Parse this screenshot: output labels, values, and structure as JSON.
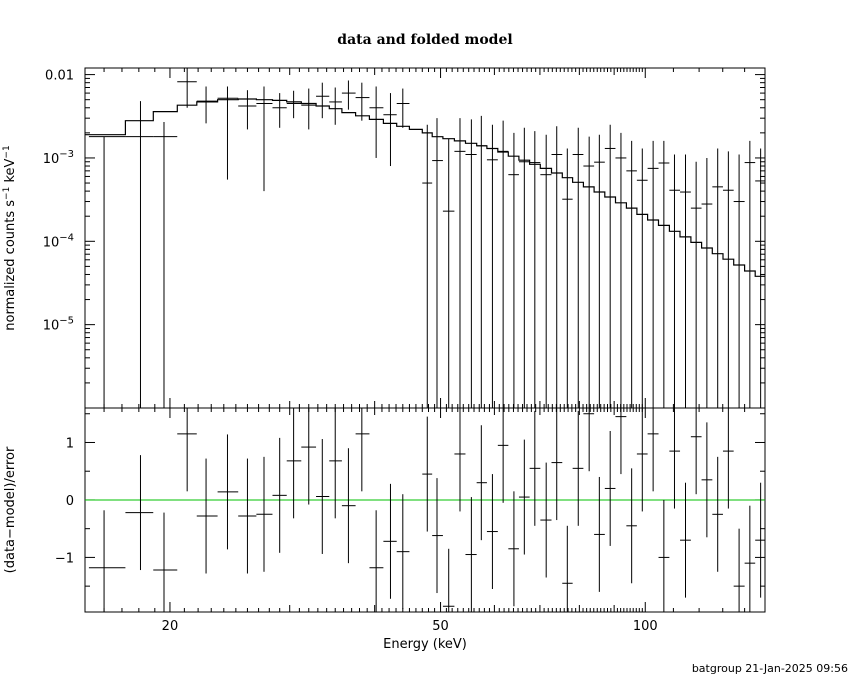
{
  "chart_data": [
    {
      "type": "scatter",
      "panel": "top",
      "title": "data and folded model",
      "ylabel": "normalized counts s",
      "ylabel_sup1": "−1",
      "ylabel_unit": " keV",
      "ylabel_sup2": "−1",
      "xlim": [
        15,
        150
      ],
      "ylim": [
        1e-06,
        0.012
      ],
      "xscale": "log",
      "yscale": "log",
      "ytick_labels": [
        {
          "value": 0.01,
          "base": "0.01",
          "exp": ""
        },
        {
          "value": 0.001,
          "base": "10",
          "exp": "−3"
        },
        {
          "value": 0.0001,
          "base": "10",
          "exp": "−4"
        },
        {
          "value": 1e-05,
          "base": "10",
          "exp": "−5"
        }
      ],
      "series": [
        {
          "kind": "data",
          "x": [
            16.0,
            18.1,
            19.6,
            21.2,
            22.6,
            24.3,
            26.0,
            27.5,
            29.0,
            30.4,
            32.0,
            33.5,
            35.0,
            36.6,
            38.3,
            40.2,
            42.2,
            44.0,
            47.8,
            49.4,
            51.4,
            53.4,
            55.5,
            57.4,
            59.6,
            61.8,
            64.1,
            66.4,
            68.8,
            71.5,
            74.1,
            76.8,
            79.7,
            82.7,
            85.6,
            88.8,
            92.1,
            95.5,
            99.0,
            102.7,
            106.5,
            110.4,
            114.6,
            118.8,
            123.2,
            127.8,
            132.5,
            137.4,
            142.5,
            147.8
          ],
          "y": [
            0.0018,
            0.0018,
            0.0018,
            0.0082,
            0.0048,
            0.0052,
            0.0042,
            0.0045,
            0.004,
            0.0045,
            0.0043,
            0.0055,
            0.0047,
            0.006,
            0.0053,
            0.004,
            0.0033,
            0.0045,
            0.0005,
            0.00093,
            0.00023,
            0.0012,
            0.0011,
            0.0014,
            0.00095,
            0.0012,
            0.00063,
            0.0009,
            0.00088,
            0.00063,
            0.0011,
            0.00032,
            0.0011,
            0.0008,
            0.00089,
            0.0013,
            0.001,
            0.0007,
            0.00054,
            0.00075,
            0.00087,
            0.00041,
            0.00039,
            0.00025,
            0.00028,
            0.00045,
            0.00041,
            0.0003,
            0.00088,
            0.00053
          ],
          "xlo": [
            15.2,
            17.2,
            18.9,
            20.5,
            21.9,
            23.5,
            25.2,
            26.8,
            28.3,
            29.7,
            31.2,
            32.8,
            34.3,
            35.8,
            37.5,
            39.3,
            41.2,
            43.1,
            47.0,
            48.6,
            50.4,
            52.4,
            54.4,
            56.5,
            58.5,
            60.7,
            62.9,
            65.2,
            67.6,
            70.1,
            72.8,
            75.5,
            78.2,
            81.1,
            84.1,
            87.2,
            90.4,
            93.8,
            97.2,
            100.8,
            104.6,
            108.5,
            112.5,
            116.7,
            121.0,
            125.5,
            130.1,
            134.9,
            140.0,
            145.1
          ],
          "xhi": [
            17.2,
            18.9,
            20.5,
            21.9,
            23.5,
            25.2,
            26.8,
            28.3,
            29.7,
            31.2,
            32.8,
            34.3,
            35.8,
            37.5,
            39.3,
            41.2,
            43.1,
            45.0,
            48.6,
            50.4,
            52.4,
            54.4,
            56.5,
            58.5,
            60.7,
            62.9,
            65.2,
            67.6,
            70.1,
            72.8,
            75.5,
            78.2,
            81.1,
            84.1,
            87.2,
            90.4,
            93.8,
            97.2,
            100.8,
            104.6,
            108.5,
            112.5,
            116.7,
            121.0,
            125.5,
            130.1,
            134.9,
            140.0,
            145.1,
            150.0
          ],
          "ylo": [
            1e-06,
            1e-06,
            1e-06,
            0.004,
            0.0026,
            0.00055,
            0.0022,
            0.0004,
            0.0023,
            0.003,
            0.0022,
            0.003,
            0.0025,
            0.0038,
            0.0028,
            0.001,
            0.0008,
            0.0023,
            1e-06,
            1e-06,
            1e-06,
            1e-06,
            1e-06,
            1e-06,
            1e-06,
            1e-06,
            1e-06,
            1e-06,
            1e-06,
            1e-06,
            1e-06,
            1e-06,
            1e-06,
            1e-06,
            1e-06,
            1e-06,
            1e-06,
            1e-06,
            1e-06,
            1e-06,
            1e-06,
            1e-06,
            1e-06,
            1e-06,
            1e-06,
            1e-06,
            1e-06,
            1e-06,
            1e-06,
            1e-06
          ],
          "yhi": [
            0.0018,
            0.0048,
            0.0027,
            0.012,
            0.0072,
            0.0072,
            0.0065,
            0.0072,
            0.006,
            0.0064,
            0.0068,
            0.008,
            0.007,
            0.0085,
            0.008,
            0.0072,
            0.006,
            0.0068,
            0.0025,
            0.003,
            0.0017,
            0.003,
            0.0029,
            0.0032,
            0.0025,
            0.0028,
            0.002,
            0.0023,
            0.0021,
            0.0019,
            0.0024,
            0.0013,
            0.0023,
            0.0018,
            0.0019,
            0.0025,
            0.002,
            0.0016,
            0.0013,
            0.0016,
            0.0016,
            0.0011,
            0.0011,
            0.0009,
            0.001,
            0.0013,
            0.0012,
            0.0011,
            0.0016,
            0.0013
          ]
        },
        {
          "kind": "model",
          "edges": [
            15.2,
            17.2,
            18.9,
            20.5,
            21.9,
            23.5,
            25.2,
            26.8,
            28.3,
            29.7,
            31.2,
            32.8,
            34.3,
            35.8,
            37.5,
            39.3,
            41.2,
            43.1,
            45.0,
            47.0,
            48.6,
            50.4,
            52.4,
            54.4,
            56.5,
            58.5,
            60.7,
            62.9,
            65.2,
            67.6,
            70.1,
            72.8,
            75.5,
            78.2,
            81.1,
            84.1,
            87.2,
            90.4,
            93.8,
            97.2,
            100.8,
            104.6,
            108.5,
            112.5,
            116.7,
            121.0,
            125.5,
            130.1,
            134.9,
            140.0,
            145.1,
            150.0
          ],
          "values": [
            0.0019,
            0.0028,
            0.0036,
            0.0043,
            0.0047,
            0.005,
            0.0051,
            0.005,
            0.0049,
            0.0047,
            0.0045,
            0.0042,
            0.0039,
            0.0035,
            0.0032,
            0.0029,
            0.0026,
            0.0024,
            0.0022,
            0.002,
            0.0018,
            0.0017,
            0.0016,
            0.0015,
            0.0014,
            0.0013,
            0.00118,
            0.00105,
            0.00094,
            0.00084,
            0.00075,
            0.00066,
            0.00058,
            0.00051,
            0.00045,
            0.00039,
            0.00034,
            0.00029,
            0.00025,
            0.00021,
            0.00018,
            0.000155,
            0.000132,
            0.000113,
            9.7e-05,
            8.3e-05,
            7.1e-05,
            6.1e-05,
            5.2e-05,
            4.4e-05,
            3.8e-05
          ]
        }
      ]
    },
    {
      "type": "scatter",
      "panel": "bottom",
      "xlabel": "Energy (keV)",
      "ylabel": "(data−model)/error",
      "xlim": [
        15,
        150
      ],
      "ylim": [
        -1.95,
        1.6
      ],
      "xscale": "log",
      "xtick_labels": [
        {
          "value": 20,
          "label": "20"
        },
        {
          "value": 50,
          "label": "50"
        },
        {
          "value": 100,
          "label": "100"
        }
      ],
      "ytick_labels": [
        {
          "value": 1,
          "label": "1"
        },
        {
          "value": 0,
          "label": "0"
        },
        {
          "value": -1,
          "label": "−1"
        }
      ],
      "reference_line": {
        "y": 0,
        "color": "#00c000"
      },
      "series": [
        {
          "kind": "residual",
          "x": [
            16.0,
            18.1,
            19.6,
            21.2,
            22.6,
            24.3,
            26.0,
            27.5,
            29.0,
            30.4,
            32.0,
            33.5,
            35.0,
            36.6,
            38.3,
            40.2,
            42.2,
            44.0,
            47.8,
            49.4,
            51.4,
            53.4,
            55.5,
            57.4,
            59.6,
            61.8,
            64.1,
            66.4,
            68.8,
            71.5,
            74.1,
            76.8,
            79.7,
            82.7,
            85.6,
            88.8,
            92.1,
            95.5,
            99.0,
            102.7,
            106.5,
            110.4,
            114.6,
            118.8,
            123.2,
            127.8,
            132.5,
            137.4,
            142.5,
            147.8
          ],
          "y": [
            -1.18,
            -0.22,
            -1.22,
            1.15,
            -0.28,
            0.14,
            -0.28,
            -0.25,
            0.08,
            0.68,
            0.92,
            0.06,
            0.68,
            -0.1,
            1.15,
            -1.18,
            -0.72,
            -0.9,
            0.45,
            -0.62,
            -1.85,
            0.8,
            -0.95,
            0.3,
            -0.55,
            0.95,
            -0.85,
            0.05,
            0.55,
            -0.35,
            0.65,
            -1.45,
            0.55,
            1.5,
            -0.6,
            0.2,
            1.45,
            -0.45,
            0.8,
            1.15,
            -1.0,
            0.85,
            -0.7,
            1.1,
            0.35,
            -0.25,
            0.85,
            -1.5,
            -1.1,
            -0.7
          ],
          "xlo": [
            15.2,
            17.2,
            18.9,
            20.5,
            21.9,
            23.5,
            25.2,
            26.8,
            28.3,
            29.7,
            31.2,
            32.8,
            34.3,
            35.8,
            37.5,
            39.3,
            41.2,
            43.1,
            47.0,
            48.6,
            50.4,
            52.4,
            54.4,
            56.5,
            58.5,
            60.7,
            62.9,
            65.2,
            67.6,
            70.1,
            72.8,
            75.5,
            78.2,
            81.1,
            84.1,
            87.2,
            90.4,
            93.8,
            97.2,
            100.8,
            104.6,
            108.5,
            112.5,
            116.7,
            121.0,
            125.5,
            130.1,
            134.9,
            140.0,
            145.1
          ],
          "xhi": [
            17.2,
            18.9,
            20.5,
            21.9,
            23.5,
            25.2,
            26.8,
            28.3,
            29.7,
            31.2,
            32.8,
            34.3,
            35.8,
            37.5,
            39.3,
            41.2,
            43.1,
            45.0,
            48.6,
            50.4,
            52.4,
            54.4,
            56.5,
            58.5,
            60.7,
            62.9,
            65.2,
            67.6,
            70.1,
            72.8,
            75.5,
            78.2,
            81.1,
            84.1,
            87.2,
            90.4,
            93.8,
            97.2,
            100.8,
            104.6,
            108.5,
            112.5,
            116.7,
            121.0,
            125.5,
            130.1,
            134.9,
            140.0,
            145.1,
            150.0
          ]
        }
      ]
    }
  ],
  "footer": "batgroup 21-Jan-2025 09:56"
}
